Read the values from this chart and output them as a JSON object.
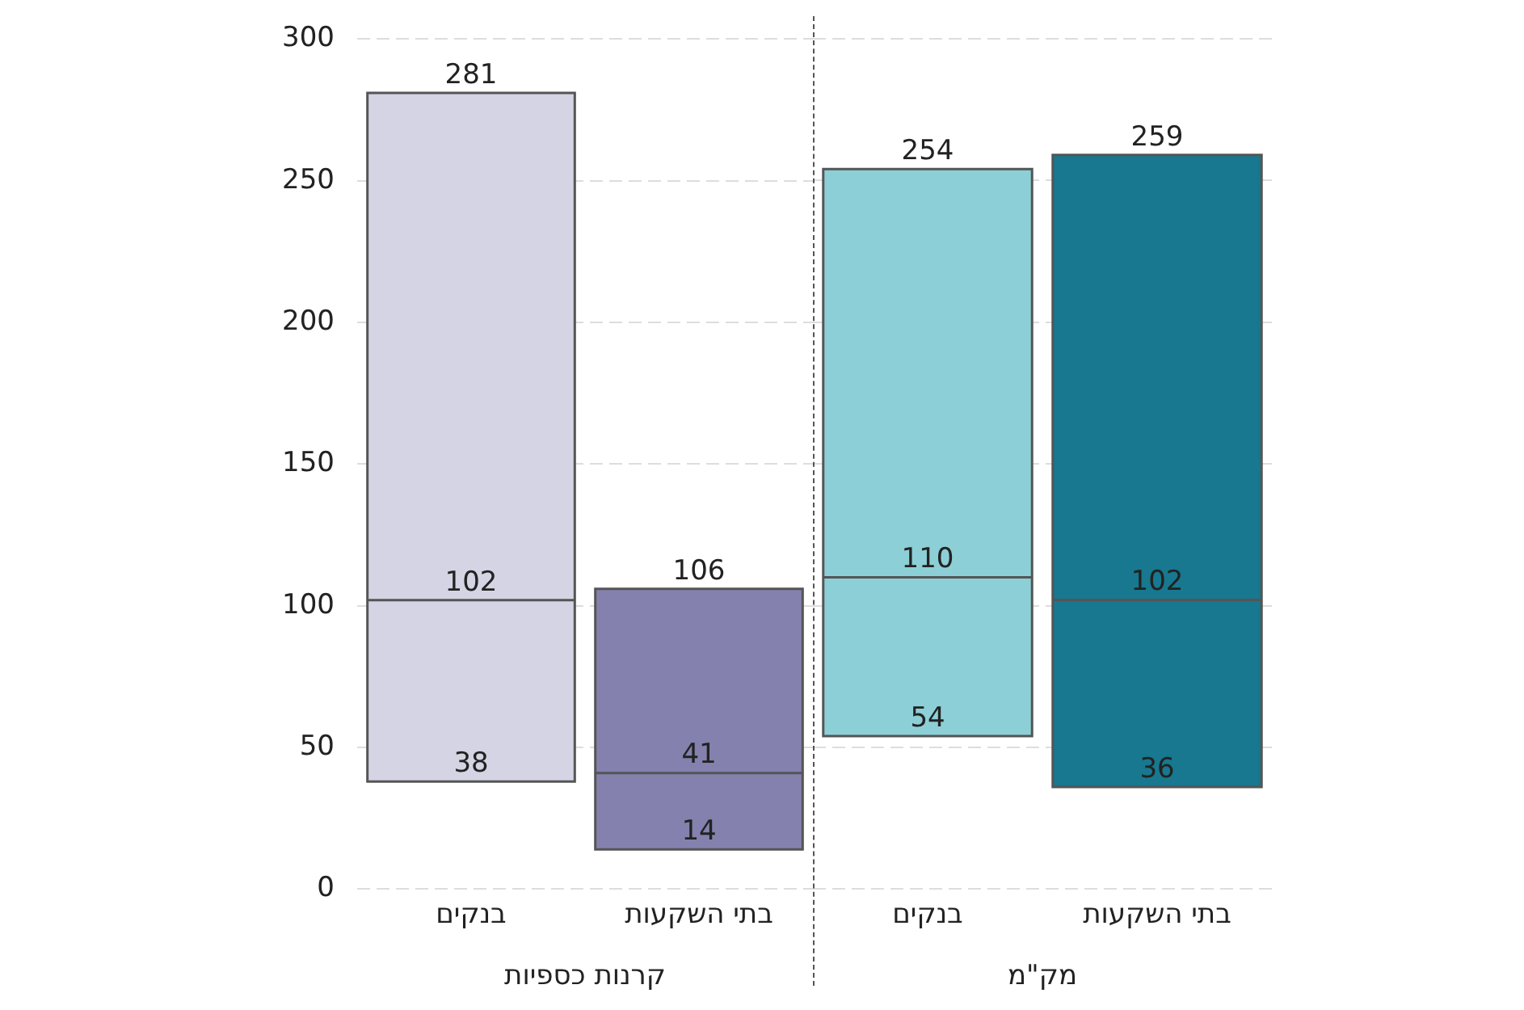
{
  "chart_data": [
    {
      "type": "box",
      "xlabel": "קרנות כספיות",
      "categories": [
        "בנקים",
        "בתי השקעות"
      ],
      "colors": [
        "#d4d4e4",
        "#8481ae"
      ],
      "boxes": [
        {
          "low": 38,
          "q1": 38,
          "median": 102,
          "q3": 281,
          "high": 281
        },
        {
          "low": 14,
          "q1": 14,
          "median": 41,
          "q3": 106,
          "high": 106
        }
      ],
      "ylim": [
        0,
        300
      ],
      "yticks": [
        0,
        50,
        100,
        150,
        200,
        250,
        300
      ],
      "grid": "y",
      "annotations": [
        {
          "text": "281",
          "x": "בנקים",
          "y": 281
        },
        {
          "text": "102",
          "x": "בנקים",
          "y": 102
        },
        {
          "text": "38",
          "x": "בנקים",
          "y": 38
        },
        {
          "text": "106",
          "x": "בתי השקעות",
          "y": 106
        },
        {
          "text": "41",
          "x": "בתי השקעות",
          "y": 41
        },
        {
          "text": "14",
          "x": "בתי השקעות",
          "y": 14
        }
      ]
    },
    {
      "type": "box",
      "xlabel": "מק\"מ",
      "categories": [
        "בנקים",
        "בתי השקעות"
      ],
      "colors": [
        "#8dcfd7",
        "#17788f"
      ],
      "boxes": [
        {
          "low": 54,
          "q1": 54,
          "median": 110,
          "q3": 254,
          "high": 254
        },
        {
          "low": 36,
          "q1": 36,
          "median": 102,
          "q3": 259,
          "high": 259
        }
      ],
      "ylim": [
        0,
        300
      ],
      "yticks": [
        0,
        50,
        100,
        150,
        200,
        250,
        300
      ],
      "grid": "y",
      "tick_labels": "x",
      "annotations": [
        {
          "text": "254",
          "x": "בנקים",
          "y": 254
        },
        {
          "text": "110",
          "x": "בנקים",
          "y": 110
        },
        {
          "text": "54",
          "x": "בנקים",
          "y": 54
        },
        {
          "text": "259",
          "x": "בתי השקעות",
          "y": 259
        },
        {
          "text": "102",
          "x": "בתי השקעות",
          "y": 102
        },
        {
          "text": "36",
          "x": "בתי השקעות",
          "y": 36
        }
      ]
    }
  ]
}
